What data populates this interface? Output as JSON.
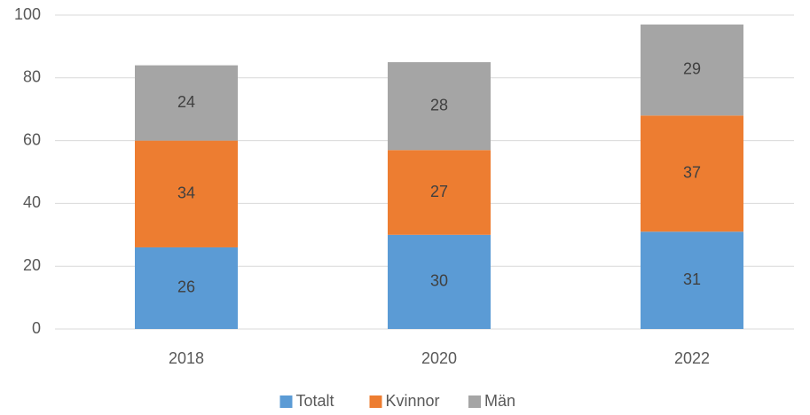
{
  "chart_data": {
    "type": "bar",
    "stacked": true,
    "categories": [
      "2018",
      "2020",
      "2022"
    ],
    "series": [
      {
        "name": "Totalt",
        "color": "#5b9bd5",
        "values": [
          26,
          30,
          31
        ]
      },
      {
        "name": "Kvinnor",
        "color": "#ed7d31",
        "values": [
          34,
          27,
          37
        ]
      },
      {
        "name": "Män",
        "color": "#a5a5a5",
        "values": [
          24,
          28,
          29
        ]
      }
    ],
    "ylim": [
      0,
      100
    ],
    "yticks": [
      0,
      20,
      40,
      60,
      80,
      100
    ],
    "grid": true,
    "legend": "bottom"
  }
}
